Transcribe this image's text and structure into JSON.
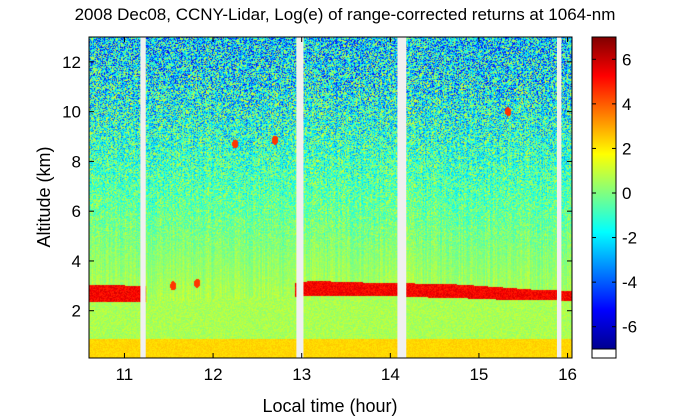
{
  "chart_data": {
    "type": "heatmap",
    "title": "2008 Dec08, CCNY-Lidar, Log(e) of range-corrected returns at 1064-nm",
    "xlabel": "Local time (hour)",
    "ylabel": "Altitude (km)",
    "xlim": [
      10.6,
      16.05
    ],
    "ylim": [
      0.1,
      13.0
    ],
    "xticks": [
      11,
      12,
      13,
      14,
      15,
      16
    ],
    "yticks": [
      2,
      4,
      6,
      8,
      10,
      12
    ],
    "colorbar": {
      "range": [
        -7,
        7
      ],
      "ticks": [
        -6,
        -4,
        -2,
        0,
        2,
        4,
        6
      ],
      "colormap": "jet"
    },
    "data_gaps": [
      [
        11.18,
        11.24
      ],
      [
        12.94,
        13.02
      ],
      [
        14.08,
        14.18
      ],
      [
        15.88,
        15.93
      ]
    ],
    "features": {
      "boundary_layer_top_km": [
        [
          10.6,
          3.05
        ],
        [
          11.15,
          3.0
        ],
        [
          12.95,
          3.1
        ],
        [
          13.1,
          3.2
        ],
        [
          14.0,
          3.1
        ],
        [
          14.2,
          3.1
        ],
        [
          14.8,
          3.05
        ],
        [
          15.2,
          2.95
        ],
        [
          15.6,
          2.85
        ],
        [
          16.0,
          2.8
        ]
      ],
      "boundary_layer_bottom_km": [
        [
          10.6,
          2.35
        ],
        [
          11.15,
          2.35
        ],
        [
          12.95,
          2.55
        ],
        [
          13.1,
          2.6
        ],
        [
          14.0,
          2.6
        ],
        [
          14.2,
          2.55
        ],
        [
          14.8,
          2.5
        ],
        [
          15.2,
          2.45
        ],
        [
          15.6,
          2.45
        ],
        [
          16.0,
          2.4
        ]
      ],
      "aerosol_gap_interval": [
        11.24,
        12.92
      ],
      "near_surface_layer_km": [
        0.1,
        0.85
      ],
      "clouds": [
        {
          "time": 12.25,
          "alt_km": 8.7
        },
        {
          "time": 12.7,
          "alt_km": 8.85
        },
        {
          "time": 15.33,
          "alt_km": 10.0
        },
        {
          "time": 11.55,
          "alt_km": 3.0
        },
        {
          "time": 11.82,
          "alt_km": 3.1
        }
      ]
    }
  }
}
